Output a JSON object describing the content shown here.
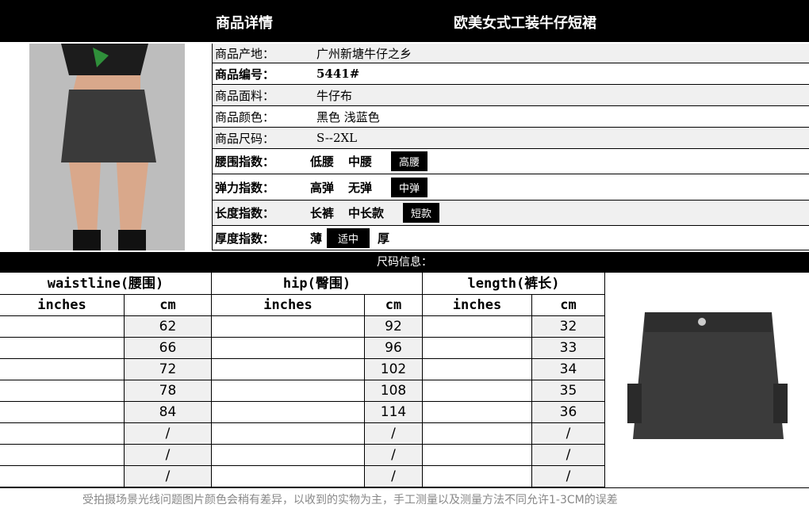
{
  "header": {
    "left_title": "商品详情",
    "right_title": "欧美女式工装牛仔短裙"
  },
  "info": [
    {
      "label": "商品产地：",
      "value": "广州新塘牛仔之乡"
    },
    {
      "label": "商品编号：",
      "value": "5441#"
    },
    {
      "label": "商品面料：",
      "value": "牛仔布"
    },
    {
      "label": "商品颜色：",
      "value": "黑色 浅蓝色"
    },
    {
      "label": "商品尺码：",
      "value": "S--2XL"
    }
  ],
  "indices": [
    {
      "label": "腰围指数：",
      "options": [
        "低腰",
        "中腰"
      ],
      "selected": "高腰"
    },
    {
      "label": "弹力指数：",
      "options": [
        "高弹",
        "无弹"
      ],
      "selected": "中弹"
    },
    {
      "label": "长度指数：",
      "options": [
        "长裤",
        "中长款"
      ],
      "selected": "短款"
    },
    {
      "label": "厚度指数：",
      "before": "薄",
      "selected": "适中",
      "after": "厚"
    }
  ],
  "size_title": "尺码信息：",
  "size_table": {
    "groups": [
      "waistline(腰围)",
      "hip(臀围)",
      "length(裤长)"
    ],
    "units": [
      "inches",
      "cm",
      "inches",
      "cm",
      "inches",
      "cm"
    ],
    "rows": [
      [
        "",
        "62",
        "",
        "92",
        "",
        "32"
      ],
      [
        "",
        "66",
        "",
        "96",
        "",
        "33"
      ],
      [
        "",
        "72",
        "",
        "102",
        "",
        "34"
      ],
      [
        "",
        "78",
        "",
        "108",
        "",
        "35"
      ],
      [
        "",
        "84",
        "",
        "114",
        "",
        "36"
      ],
      [
        "",
        "/",
        "",
        "/",
        "",
        "/"
      ],
      [
        "",
        "/",
        "",
        "/",
        "",
        "/"
      ],
      [
        "",
        "/",
        "",
        "/",
        "",
        "/"
      ]
    ]
  },
  "footer": "受拍摄场景光线问题图片颜色会稍有差异，以收到的实物为主，手工测量以及测量方法不同允许1-3CM的误差"
}
